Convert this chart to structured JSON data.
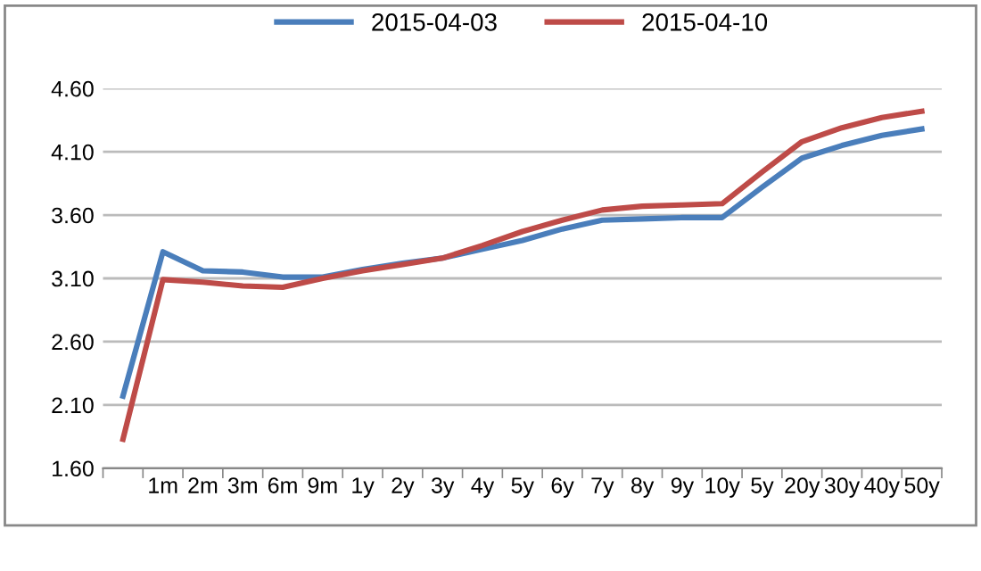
{
  "chart_data": {
    "type": "line",
    "categories": [
      null,
      "1m",
      "2m",
      "3m",
      "6m",
      "9m",
      "1y",
      "2y",
      "3y",
      "4y",
      "5y",
      "6y",
      "7y",
      "8y",
      "9y",
      "10y",
      "5y",
      "20y",
      "30y",
      "40y",
      "50y"
    ],
    "series": [
      {
        "name": "2015-04-03",
        "color": "#4a7ebb",
        "values": [
          2.17,
          3.31,
          3.16,
          3.15,
          3.11,
          3.11,
          3.17,
          3.22,
          3.26,
          3.33,
          3.4,
          3.49,
          3.56,
          3.57,
          3.58,
          3.58,
          3.82,
          4.05,
          4.15,
          4.23,
          4.28
        ]
      },
      {
        "name": "2015-04-10",
        "color": "#be4b48",
        "values": [
          1.83,
          3.09,
          3.07,
          3.04,
          3.03,
          3.1,
          3.16,
          3.21,
          3.26,
          3.36,
          3.47,
          3.56,
          3.64,
          3.67,
          3.68,
          3.69,
          3.94,
          4.18,
          4.29,
          4.37,
          4.42
        ]
      }
    ],
    "ylim": [
      1.6,
      4.6
    ],
    "yticks": [
      {
        "value": 1.6,
        "label": "1.60"
      },
      {
        "value": 2.1,
        "label": "2.10"
      },
      {
        "value": 2.6,
        "label": "2.60"
      },
      {
        "value": 3.1,
        "label": "3.10"
      },
      {
        "value": 3.6,
        "label": "3.60"
      },
      {
        "value": 4.1,
        "label": "4.10"
      },
      {
        "value": 4.6,
        "label": "4.60"
      }
    ],
    "grid": "y",
    "legend": "top",
    "marker": "none",
    "line_style": "solid"
  }
}
